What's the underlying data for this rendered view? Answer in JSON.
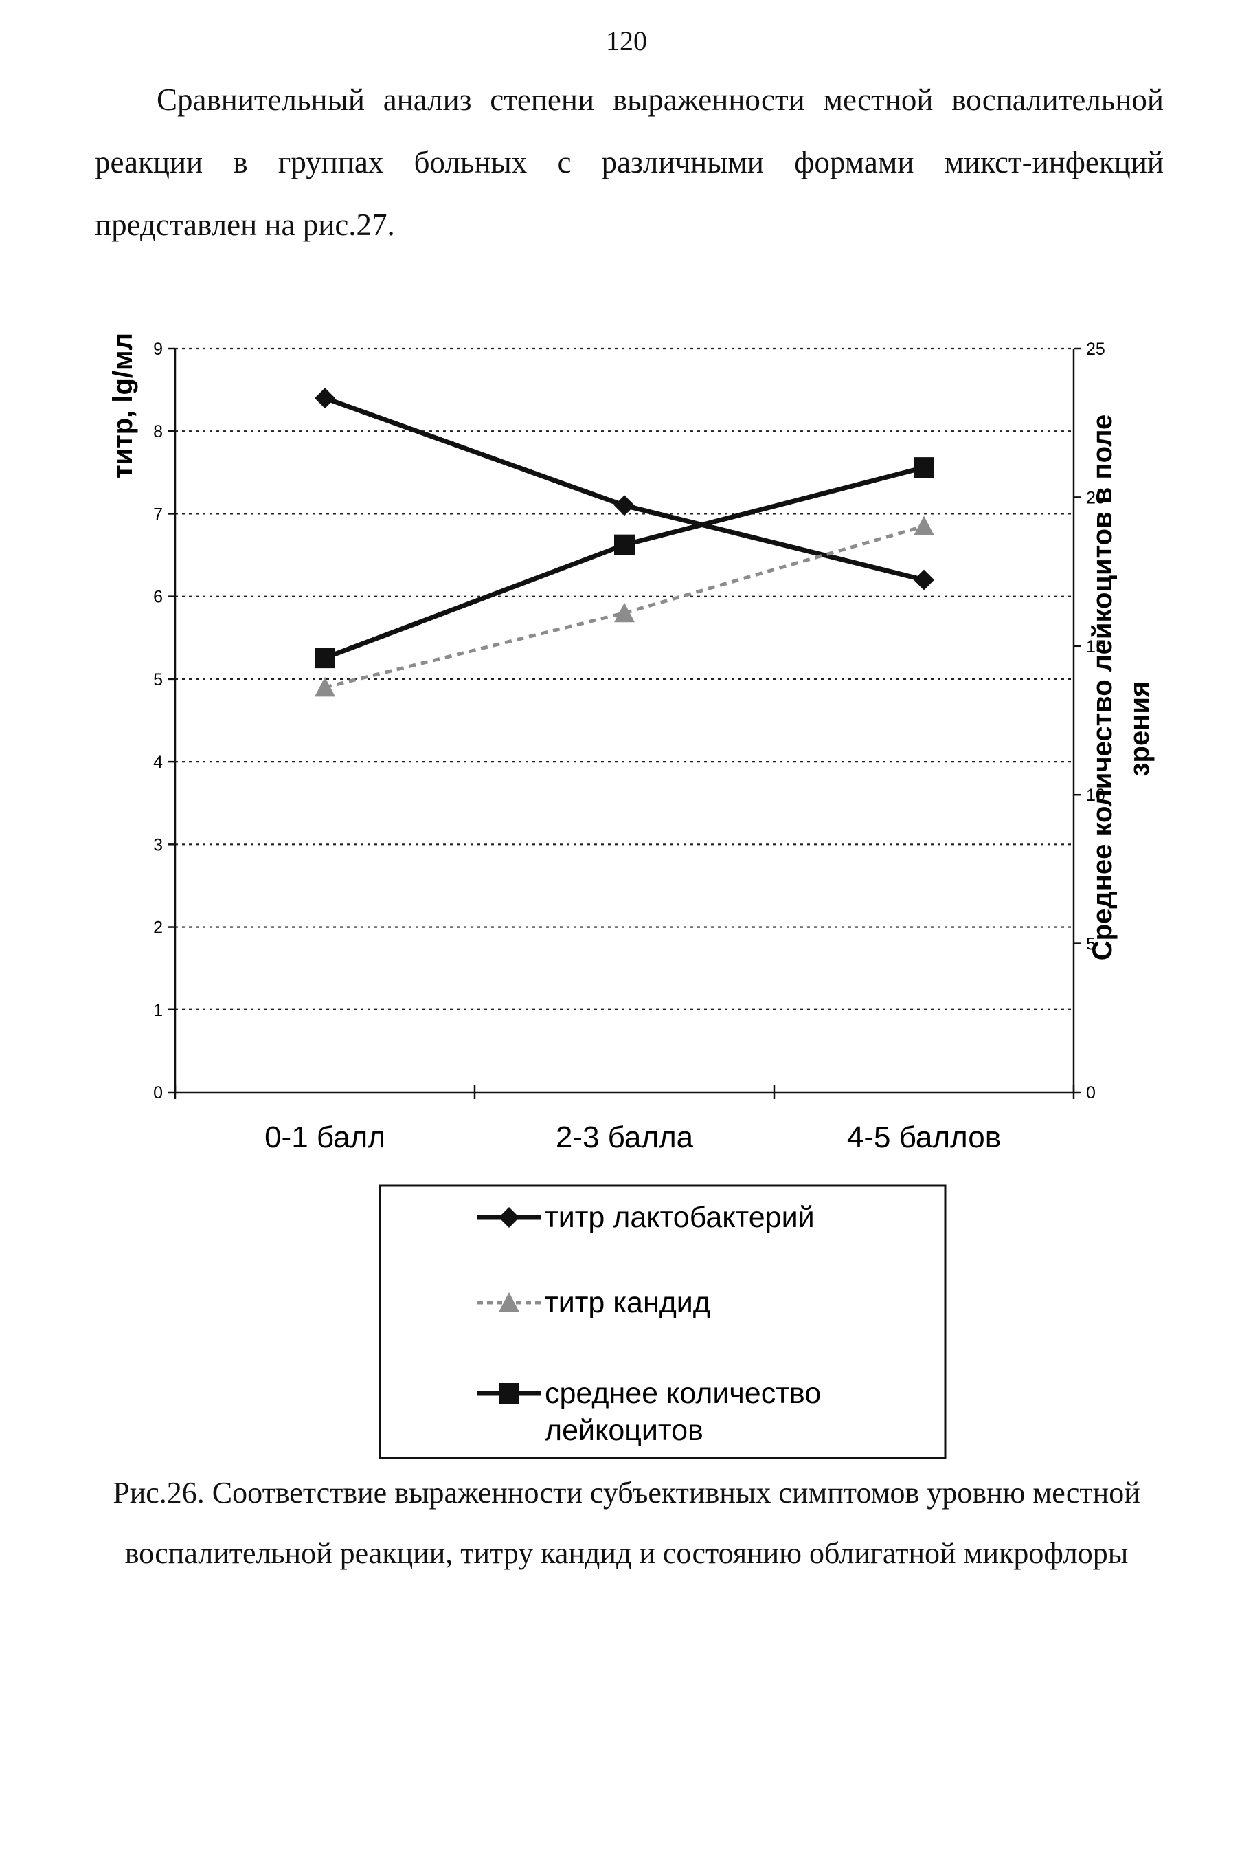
{
  "page": {
    "number": "120",
    "intro_lines": [
      "Сравнительный анализ степени выраженности местной воспалительной",
      "реакции в группах больных с различными формами микст-инфекций",
      "представлен на рис.27."
    ],
    "caption": "Рис.26. Соответствие выраженности субъективных симптомов уровню местной воспалительной реакции, титру кандид и состоянию облигатной микрофлоры"
  },
  "chart_data": {
    "type": "line",
    "title": "",
    "categories": [
      "0-1 балл",
      "2-3 балла",
      "4-5 баллов"
    ],
    "y_left": {
      "label": "титр, lg/мл",
      "range": [
        0,
        9
      ],
      "ticks": [
        "0",
        "1",
        "2",
        "3",
        "4",
        "5",
        "6",
        "7",
        "8",
        "9"
      ]
    },
    "y_right": {
      "label_lines": [
        "Среднее количество лейкоцитов в поле",
        "зрения"
      ],
      "range": [
        0,
        25
      ],
      "ticks": [
        "0",
        "5",
        "10",
        "15",
        "20",
        "25"
      ]
    },
    "grid": true,
    "grid_style": "dotted horizontal",
    "legend_position": "bottom",
    "series": [
      {
        "name": "титр лактобактерий",
        "axis": "left",
        "marker": "diamond",
        "color": "#111111",
        "values": [
          8.4,
          7.1,
          6.2
        ]
      },
      {
        "name": "титр кандид",
        "axis": "left",
        "marker": "triangle",
        "color": "#8c8c8c",
        "dashed": true,
        "values": [
          4.9,
          5.8,
          6.85
        ]
      },
      {
        "name_lines": [
          "среднее количество",
          "лейкоцитов"
        ],
        "axis": "right",
        "marker": "square",
        "color": "#111111",
        "values": [
          14.6,
          18.4,
          21.0
        ]
      }
    ]
  }
}
